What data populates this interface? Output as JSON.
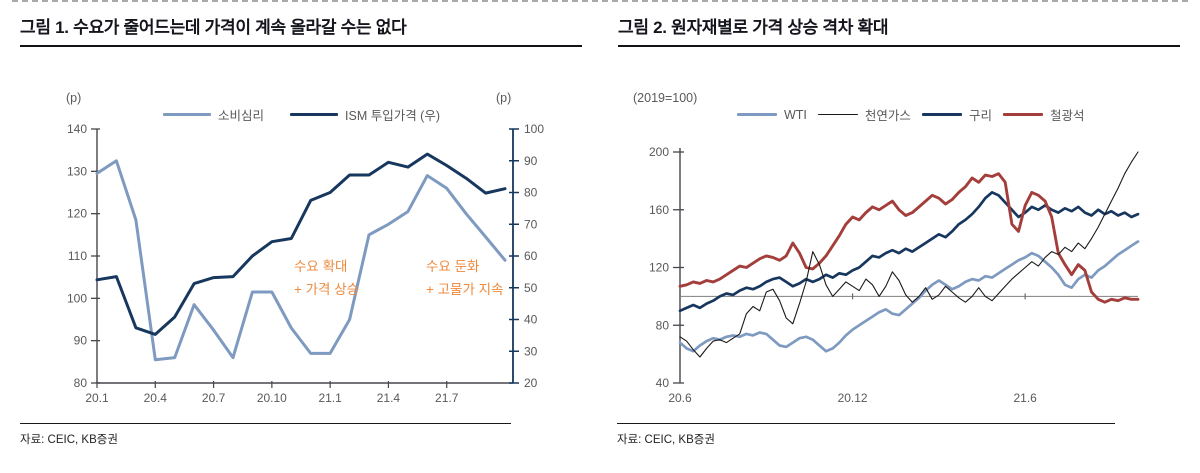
{
  "chart_data": [
    {
      "type": "line",
      "title": "그림 1. 수요가 줄어드는데 가격이 계속 올라갈 수는 없다",
      "source": "자료: CEIC, KB증권",
      "left_axis": {
        "unit_label": "(p)",
        "min": 80,
        "max": 140,
        "ticks": [
          80,
          90,
          100,
          110,
          120,
          130,
          140
        ]
      },
      "right_axis": {
        "unit_label": "(p)",
        "min": 20,
        "max": 100,
        "ticks": [
          20,
          30,
          40,
          50,
          60,
          70,
          80,
          90,
          100
        ]
      },
      "x": [
        "20.1",
        "20.2",
        "20.3",
        "20.4",
        "20.5",
        "20.6",
        "20.7",
        "20.8",
        "20.9",
        "20.10",
        "20.11",
        "20.12",
        "21.1",
        "21.2",
        "21.3",
        "21.4",
        "21.5",
        "21.6",
        "21.7",
        "21.8",
        "21.9",
        "21.10"
      ],
      "x_tick_labels": [
        "20.1",
        "20.4",
        "20.7",
        "20.10",
        "21.1",
        "21.4",
        "21.7"
      ],
      "x_tick_indices": [
        0,
        3,
        6,
        9,
        12,
        15,
        18
      ],
      "series": [
        {
          "id": "consumer-sentiment",
          "name": "소비심리",
          "axis": "left",
          "color": "#7e9ac0",
          "line_width": 3,
          "values": [
            129.5,
            132.5,
            118.5,
            85.5,
            86,
            98.5,
            92.5,
            86,
            101.5,
            101.5,
            93,
            87,
            87,
            95,
            115,
            117.5,
            120.5,
            129,
            126,
            120,
            114.5,
            109
          ]
        },
        {
          "id": "ism-input-price",
          "name": "ISM 투입가격 (우)",
          "axis": "right",
          "color": "#17375e",
          "line_width": 3,
          "values": [
            52.5,
            53.5,
            37.4,
            35.3,
            40.8,
            51.3,
            53.2,
            53.5,
            60,
            64.5,
            65.5,
            77.5,
            80,
            85.5,
            85.5,
            89.5,
            88,
            92.1,
            88.5,
            84.5,
            79.8,
            81.2
          ]
        }
      ],
      "annotations": [
        {
          "lines": [
            "수요 확대",
            "+ 가격 상승"
          ]
        },
        {
          "lines": [
            "수요 둔화",
            "+ 고물가 지속"
          ]
        }
      ],
      "annotation_color": "#ed8a3d",
      "legend_position": "top",
      "grid": false
    },
    {
      "type": "line",
      "title": "그림 2. 원자재별로 가격 상승 격차 확대",
      "source": "자료: CEIC, KB증권",
      "index_base_label": "(2019=100)",
      "y_axis": {
        "min": 40,
        "max": 200,
        "ticks": [
          40,
          80,
          120,
          160,
          200
        ]
      },
      "reference_line": 100,
      "x_tick_labels": [
        "20.6",
        "20.12",
        "21.6"
      ],
      "x_tick_indices": [
        0,
        26,
        52
      ],
      "series": [
        {
          "id": "wti",
          "name": "WTI",
          "color": "#7e9ac0",
          "line_width": 2.7,
          "values": [
            68,
            64,
            62,
            66,
            69,
            71,
            70,
            72,
            73,
            72,
            74,
            73,
            75,
            74,
            70,
            66,
            65,
            68,
            71,
            72,
            70,
            66,
            62,
            64,
            68,
            73,
            77,
            80,
            83,
            86,
            89,
            91,
            88,
            87,
            91,
            95,
            99,
            104,
            108,
            111,
            108,
            105,
            107,
            110,
            112,
            111,
            114,
            113,
            116,
            119,
            122,
            125,
            127,
            130,
            128,
            124,
            120,
            115,
            108,
            106,
            112,
            115,
            113,
            118,
            121,
            125,
            129,
            132,
            135,
            138
          ]
        },
        {
          "id": "natural-gas",
          "name": "천연가스",
          "color": "#1a1a1a",
          "line_width": 1.1,
          "values": [
            72,
            69,
            63,
            58,
            64,
            69,
            70,
            68,
            71,
            74,
            88,
            93,
            90,
            103,
            105,
            97,
            85,
            81,
            95,
            110,
            131,
            122,
            108,
            100,
            105,
            110,
            107,
            104,
            112,
            108,
            100,
            107,
            117,
            111,
            101,
            96,
            100,
            106,
            98,
            101,
            107,
            103,
            99,
            96,
            100,
            106,
            100,
            97,
            102,
            107,
            112,
            116,
            120,
            124,
            121,
            127,
            131,
            129,
            134,
            131,
            137,
            133,
            140,
            148,
            157,
            166,
            175,
            185,
            193,
            200
          ]
        },
        {
          "id": "copper",
          "name": "구리",
          "color": "#17375e",
          "line_width": 2.7,
          "values": [
            90,
            92,
            94,
            92,
            95,
            97,
            100,
            102,
            101,
            104,
            106,
            105,
            107,
            110,
            112,
            113,
            110,
            107,
            109,
            112,
            110,
            112,
            115,
            113,
            116,
            115,
            118,
            120,
            124,
            128,
            127,
            130,
            132,
            130,
            133,
            131,
            134,
            137,
            140,
            143,
            141,
            145,
            150,
            153,
            157,
            162,
            168,
            172,
            170,
            165,
            160,
            155,
            158,
            162,
            160,
            163,
            160,
            158,
            161,
            159,
            162,
            158,
            156,
            160,
            157,
            159,
            156,
            158,
            155,
            157
          ]
        },
        {
          "id": "iron-ore",
          "name": "철광석",
          "color": "#a33e3b",
          "line_width": 2.9,
          "values": [
            107,
            108,
            110,
            109,
            111,
            110,
            112,
            115,
            118,
            121,
            120,
            123,
            126,
            128,
            127,
            125,
            128,
            137,
            130,
            120,
            119,
            123,
            128,
            135,
            142,
            150,
            155,
            153,
            158,
            162,
            160,
            163,
            166,
            160,
            156,
            158,
            162,
            166,
            170,
            168,
            164,
            167,
            172,
            176,
            182,
            179,
            184,
            183,
            185,
            179,
            150,
            145,
            163,
            172,
            170,
            166,
            155,
            130,
            122,
            115,
            122,
            118,
            103,
            98,
            96,
            98,
            97,
            99,
            98,
            98
          ]
        }
      ],
      "legend_position": "top",
      "grid": false
    }
  ]
}
